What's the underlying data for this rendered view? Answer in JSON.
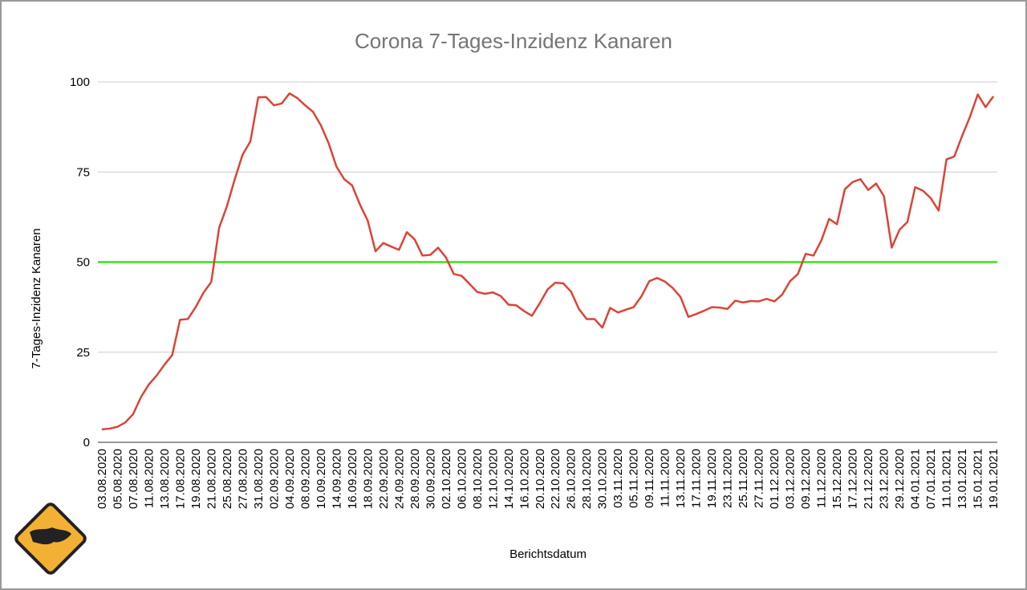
{
  "chart_data": {
    "type": "line",
    "title": "Corona 7-Tages-Inzidenz Kanaren",
    "x_label": "Berichtsdatum",
    "y_label": "7-Tages-Inzidenz Kanaren",
    "categories": [
      "03.08.2020",
      null,
      "05.08.2020",
      null,
      "07.08.2020",
      null,
      "11.08.2020",
      null,
      "13.08.2020",
      null,
      "17.08.2020",
      null,
      "19.08.2020",
      null,
      "21.08.2020",
      null,
      "25.08.2020",
      null,
      "27.08.2020",
      null,
      "31.08.2020",
      null,
      "02.09.2020",
      null,
      "04.09.2020",
      null,
      "08.09.2020",
      null,
      "10.09.2020",
      null,
      "14.09.2020",
      null,
      "16.09.2020",
      null,
      "18.09.2020",
      null,
      "22.09.2020",
      null,
      "24.09.2020",
      null,
      "28.09.2020",
      null,
      "30.09.2020",
      null,
      "02.10.2020",
      null,
      "06.10.2020",
      null,
      "08.10.2020",
      null,
      "12.10.2020",
      null,
      "14.10.2020",
      null,
      "16.10.2020",
      null,
      "20.10.2020",
      null,
      "22.10.2020",
      null,
      "26.10.2020",
      null,
      "28.10.2020",
      null,
      "30.10.2020",
      null,
      "03.11.2020",
      null,
      "05.11.2020",
      null,
      "09.11.2020",
      null,
      "11.11.2020",
      null,
      "13.11.2020",
      null,
      "17.11.2020",
      null,
      "19.11.2020",
      null,
      "23.11.2020",
      null,
      "25.11.2020",
      null,
      "27.11.2020",
      null,
      "01.12.2020",
      null,
      "03.12.2020",
      null,
      "09.12.2020",
      null,
      "11.12.2020",
      null,
      "15.12.2020",
      null,
      "17.12.2020",
      null,
      "21.12.2020",
      null,
      "23.12.2020",
      null,
      "29.12.2020",
      null,
      "04.01.2021",
      null,
      "07.01.2021",
      null,
      "11.01.2021",
      null,
      "13.01.2021",
      null,
      "15.01.2021",
      null,
      "19.01.2021"
    ],
    "series": [
      {
        "color": "#db4437",
        "values": [
          3.6,
          3.8,
          4.3,
          5.5,
          7.8,
          12.5,
          16,
          18.5,
          21.5,
          24.2,
          34.0,
          34.2,
          37.5,
          41.5,
          44.5,
          59.5,
          65.5,
          73,
          79.8,
          83.5,
          95.7,
          95.8,
          93.5,
          94,
          96.8,
          95.5,
          93.5,
          91.7,
          88,
          83,
          76.5,
          73,
          71.3,
          66,
          61.5,
          53,
          55.3,
          54.3,
          53.4,
          58.3,
          56.3,
          51.8,
          52,
          54,
          51.3,
          46.7,
          46.2,
          44,
          41.7,
          41.2,
          41.6,
          40.6,
          38.2,
          38,
          36.4,
          35.1,
          38.6,
          42.4,
          44.3,
          44.1,
          41.8,
          37,
          34.2,
          34.2,
          31.8,
          37.3,
          36,
          36.8,
          37.5,
          40.5,
          44.7,
          45.6,
          44.6,
          42.8,
          40.3,
          34.8,
          35.6,
          36.5,
          37.5,
          37.4,
          37,
          39.3,
          38.8,
          39.2,
          39.1,
          39.8,
          39.1,
          41,
          44.7,
          46.7,
          52.3,
          51.8,
          56,
          62,
          60.5,
          70.2,
          72.2,
          73,
          70,
          71.8,
          68.3,
          54,
          59,
          61.1,
          70.8,
          69.8,
          67.7,
          64.3,
          78.5,
          79.3,
          85,
          90.3,
          96.5,
          93,
          96
        ]
      }
    ],
    "reference_line": {
      "value": 50,
      "color": "#5ce33b"
    },
    "ylim": [
      0,
      100
    ],
    "yticks": [
      0,
      25,
      50,
      75,
      100
    ],
    "grid": true
  }
}
